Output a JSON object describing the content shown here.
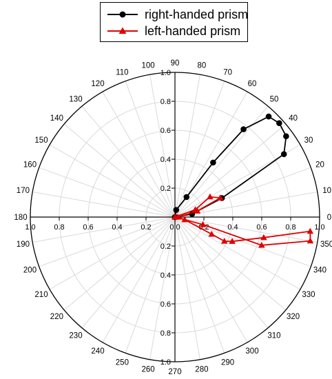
{
  "legend": {
    "items": [
      {
        "label": "right-handed prism",
        "color": "#000000",
        "marker": "circle"
      },
      {
        "label": "left-handed prism",
        "color": "#e00000",
        "marker": "triangle"
      }
    ]
  },
  "chart_data": {
    "type": "polar-line",
    "angle_unit": "degrees",
    "angle_ticks": [
      "0",
      "10",
      "20",
      "30",
      "40",
      "50",
      "60",
      "70",
      "80",
      "90",
      "100",
      "110",
      "120",
      "130",
      "140",
      "150",
      "160",
      "170",
      "180",
      "190",
      "200",
      "210",
      "220",
      "230",
      "240",
      "250",
      "260",
      "270",
      "280",
      "290",
      "300",
      "310",
      "320",
      "330",
      "340",
      "350"
    ],
    "radial_ticks": [
      "0.0",
      "0.2",
      "0.4",
      "0.6",
      "0.8",
      "1.0"
    ],
    "radial_range": [
      0,
      1.0
    ],
    "grid": true,
    "legend_position": "top",
    "series": [
      {
        "name": "right-handed prism",
        "color": "#000000",
        "marker": "circle",
        "points": [
          {
            "angle": 0,
            "r": 0.0
          },
          {
            "angle": 10,
            "r": 0.12
          },
          {
            "angle": 22,
            "r": 0.35
          },
          {
            "angle": 30,
            "r": 0.87
          },
          {
            "angle": 36,
            "r": 0.95
          },
          {
            "angle": 42,
            "r": 0.97
          },
          {
            "angle": 47,
            "r": 0.95
          },
          {
            "angle": 52,
            "r": 0.77
          },
          {
            "angle": 55,
            "r": 0.46
          },
          {
            "angle": 60,
            "r": 0.16
          },
          {
            "angle": 80,
            "r": 0.05
          },
          {
            "angle": 0,
            "r": 0.0
          }
        ]
      },
      {
        "name": "left-handed prism",
        "color": "#e00000",
        "marker": "triangle",
        "points": [
          {
            "angle": 0,
            "r": 0.0
          },
          {
            "angle": 20,
            "r": 0.15
          },
          {
            "angle": 30,
            "r": 0.28
          },
          {
            "angle": 23,
            "r": 0.34
          },
          {
            "angle": 15,
            "r": 0.16
          },
          {
            "angle": 0,
            "r": 0.02
          },
          {
            "angle": 345,
            "r": 0.07
          },
          {
            "angle": 335,
            "r": 0.28
          },
          {
            "angle": 334,
            "r": 0.38
          },
          {
            "angle": 337,
            "r": 0.43
          },
          {
            "angle": 347,
            "r": 0.63
          },
          {
            "angle": 354,
            "r": 0.94
          },
          {
            "angle": 350,
            "r": 0.95
          },
          {
            "angle": 342,
            "r": 0.63
          },
          {
            "angle": 345,
            "r": 0.2
          },
          {
            "angle": 0,
            "r": 0.0
          }
        ]
      }
    ]
  }
}
